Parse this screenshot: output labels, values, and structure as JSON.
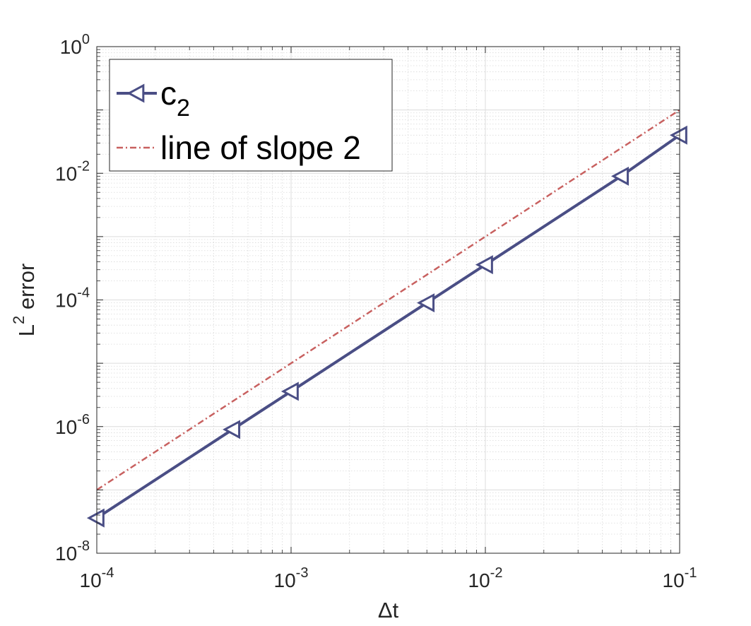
{
  "chart_data": {
    "type": "line",
    "title": "",
    "xlabel": "Δt",
    "ylabel": {
      "base": "L",
      "sup": "2",
      "rest": " error"
    },
    "xscale": "log",
    "yscale": "log",
    "xlim": [
      0.0001,
      0.1
    ],
    "ylim": [
      1e-08,
      1
    ],
    "grid": true,
    "minor_grid": true,
    "legend_position": "top-left",
    "x_ticks": [
      {
        "value": 0.0001,
        "base": "10",
        "exp": "-4"
      },
      {
        "value": 0.001,
        "base": "10",
        "exp": "-3"
      },
      {
        "value": 0.01,
        "base": "10",
        "exp": "-2"
      },
      {
        "value": 0.1,
        "base": "10",
        "exp": "-1"
      }
    ],
    "y_ticks": [
      {
        "value": 1e-08,
        "base": "10",
        "exp": "-8"
      },
      {
        "value": 1e-06,
        "base": "10",
        "exp": "-6"
      },
      {
        "value": 0.0001,
        "base": "10",
        "exp": "-4"
      },
      {
        "value": 0.01,
        "base": "10",
        "exp": "-2"
      },
      {
        "value": 1,
        "base": "10",
        "exp": "0"
      }
    ],
    "series": [
      {
        "name": "c",
        "name_sub": "2",
        "style": "solid",
        "marker": "triangle-left",
        "color": "#4A4E85",
        "x": [
          0.0001,
          0.0005,
          0.001,
          0.005,
          0.01,
          0.05,
          0.1
        ],
        "y": [
          3.6e-08,
          9e-07,
          3.6e-06,
          9e-05,
          0.00036,
          0.009,
          0.04
        ]
      },
      {
        "name": "line of slope 2",
        "style": "dashdot",
        "marker": "none",
        "color": "#C8605F",
        "x": [
          0.0001,
          0.1
        ],
        "y": [
          1e-07,
          0.1
        ]
      }
    ]
  }
}
